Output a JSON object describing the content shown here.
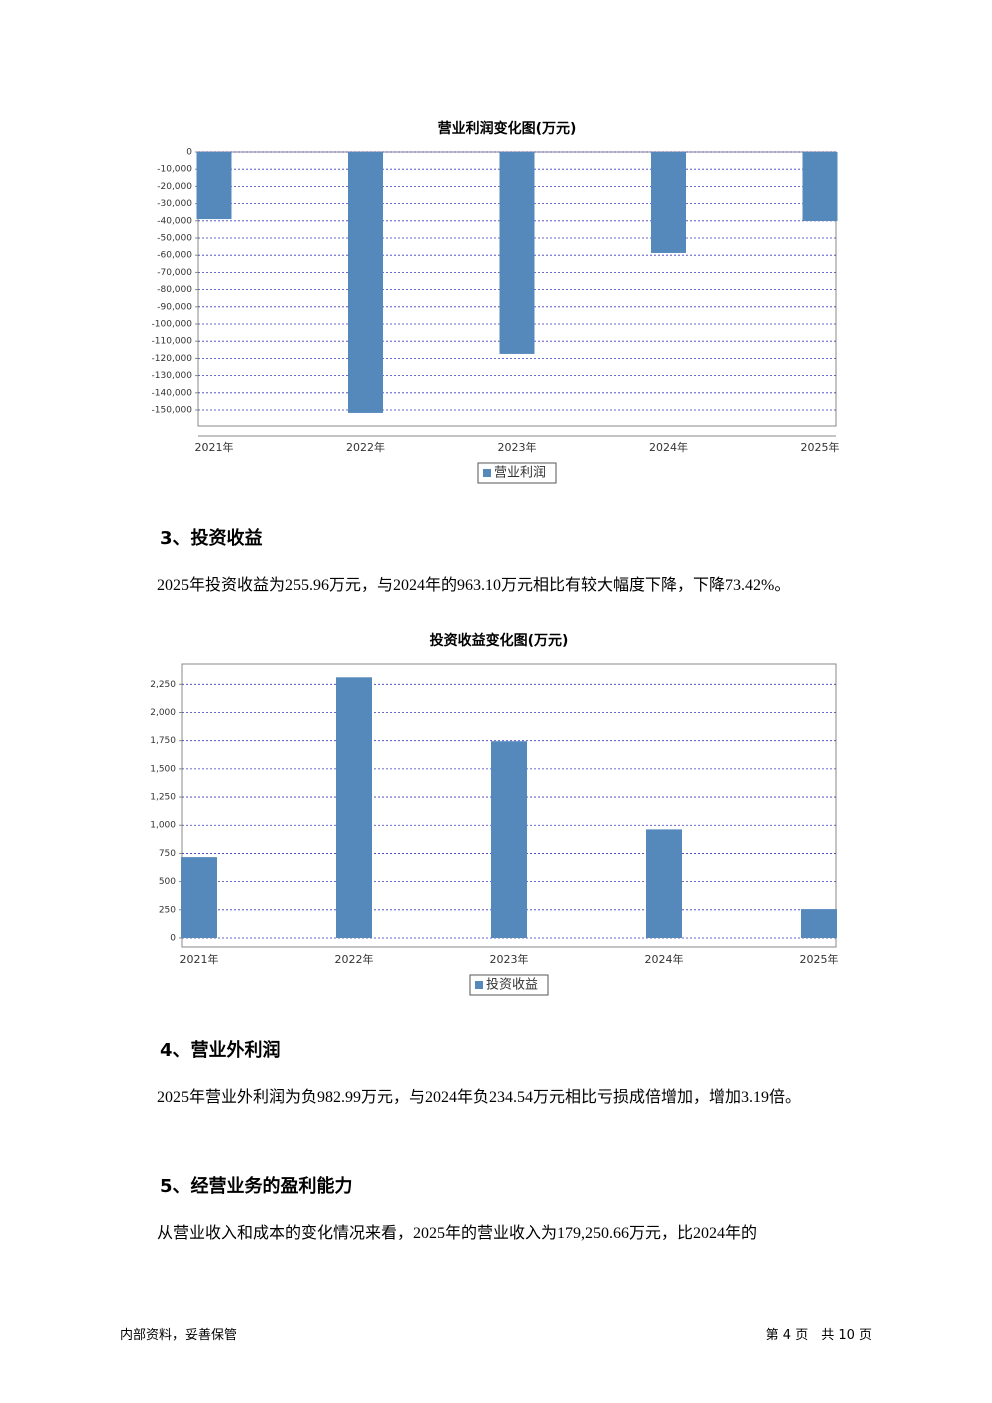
{
  "chart_data": [
    {
      "type": "bar",
      "title": "营业利润变化图(万元)",
      "categories": [
        "2021年",
        "2022年",
        "2023年",
        "2024年",
        "2025年"
      ],
      "series": [
        {
          "name": "营业利润",
          "color": "#5588bb",
          "values": [
            -39000,
            -151700,
            -117400,
            -58700,
            -40100
          ]
        }
      ],
      "ylim": [
        -159300,
        0
      ],
      "yticks": [
        0,
        {
          "value": -10000,
          "label": "-10,000"
        },
        {
          "value": -20000,
          "label": "-20,000"
        },
        {
          "value": -30000,
          "label": "-30,000"
        },
        {
          "value": -40000,
          "label": "-40,000"
        },
        {
          "value": -50000,
          "label": "-50,000"
        },
        {
          "value": -60000,
          "label": "-60,000"
        },
        {
          "value": -70000,
          "label": "-70,000"
        },
        {
          "value": -80000,
          "label": "-80,000"
        },
        {
          "value": -90000,
          "label": "-90,000"
        },
        {
          "value": -100000,
          "label": "-100,000"
        },
        {
          "value": -110000,
          "label": "-110,000"
        },
        {
          "value": -120000,
          "label": "-120,000"
        },
        {
          "value": -130000,
          "label": "-130,000"
        },
        {
          "value": -140000,
          "label": "-140,000"
        },
        {
          "value": -150000,
          "label": "-150,000"
        }
      ],
      "grid": true
    },
    {
      "type": "bar",
      "title": "投资收益变化图(万元)",
      "categories": [
        "2021年",
        "2022年",
        "2023年",
        "2024年",
        "2025年"
      ],
      "series": [
        {
          "name": "投资收益",
          "color": "#5588bb",
          "values": [
            717,
            2312,
            1745,
            963.1,
            255.96
          ]
        }
      ],
      "ylim": [
        -80,
        2430
      ],
      "yticks": [
        0,
        250,
        500,
        750,
        {
          "value": 1000,
          "label": "1,000"
        },
        {
          "value": 1250,
          "label": "1,250"
        },
        {
          "value": 1500,
          "label": "1,500"
        },
        {
          "value": 1750,
          "label": "1,750"
        },
        {
          "value": 2000,
          "label": "2,000"
        },
        {
          "value": 2250,
          "label": "2,250"
        }
      ],
      "grid": true
    }
  ],
  "sections": [
    {
      "heading": "3、投资收益",
      "text": "2025年投资收益为255.96万元，与2024年的963.10万元相比有较大幅度下降，下降73.42%。"
    },
    {
      "heading": "4、营业外利润",
      "text": "2025年营业外利润为负982.99万元，与2024年负234.54万元相比亏损成倍增加，增加3.19倍。"
    },
    {
      "heading": "5、经营业务的盈利能力",
      "text": "从营业收入和成本的变化情况来看，2025年的营业收入为179,250.66万元，比2024年的"
    }
  ],
  "footer": {
    "left": "内部资料，妥善保管",
    "right": "第 4 页　共 10 页"
  }
}
